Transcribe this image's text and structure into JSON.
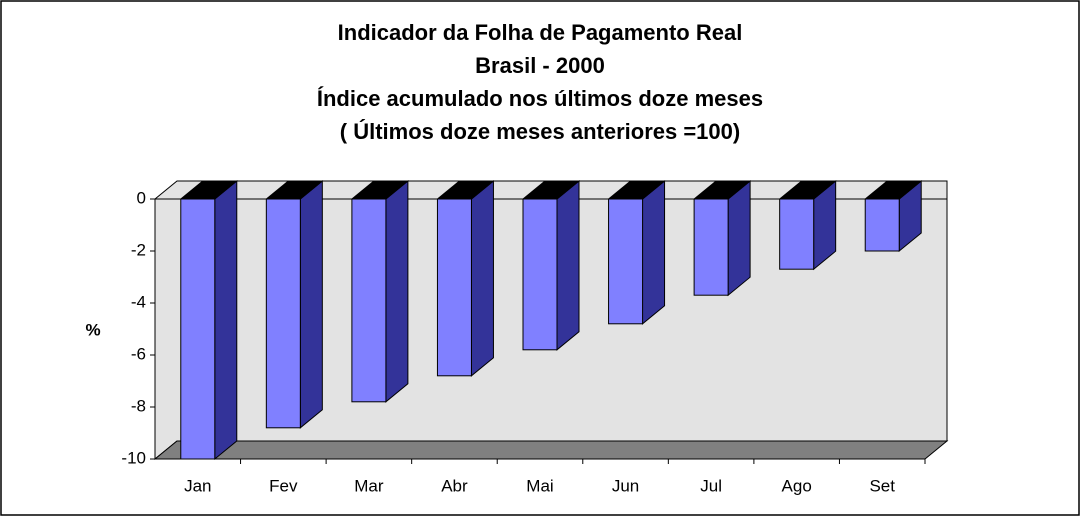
{
  "chart_data": {
    "type": "bar3d",
    "title": [
      "Indicador da Folha de Pagamento Real",
      "Brasil - 2000",
      "Índice acumulado nos últimos doze meses",
      "( Últimos doze meses anteriores =100)"
    ],
    "y_label": "%",
    "categories": [
      "Jan",
      "Fev",
      "Mar",
      "Abr",
      "Mai",
      "Jun",
      "Jul",
      "Ago",
      "Set"
    ],
    "values": [
      -10.0,
      -8.8,
      -7.8,
      -6.8,
      -5.8,
      -4.8,
      -3.7,
      -2.7,
      -2.0
    ],
    "color": "#8080ff",
    "side_color": "#333399",
    "top_color": "#000000",
    "ylim": [
      -10,
      0
    ],
    "yticks": [
      0,
      -2,
      -4,
      -6,
      -8,
      -10
    ],
    "grid": false
  }
}
